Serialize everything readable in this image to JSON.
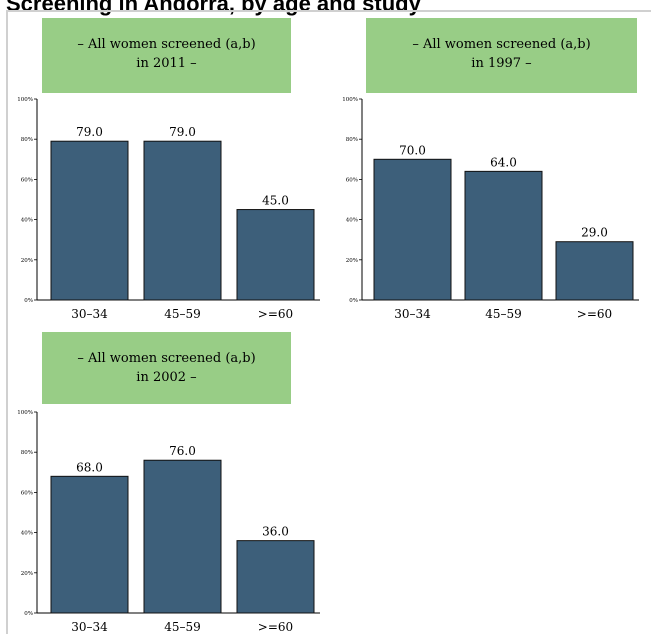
{
  "page": {
    "title": "Screening in Andorra, by age and study"
  },
  "style": {
    "bar_color": "#3d5f7a",
    "bar_stroke": "#111111",
    "header_color": "#98cd86"
  },
  "chart_data": [
    {
      "type": "bar",
      "title": "– All women screened (a,b)\nin 2011 –",
      "categories": [
        "30–34",
        "45–59",
        ">=60"
      ],
      "values": [
        79.0,
        79.0,
        45.0
      ],
      "value_labels": [
        "79.0",
        "79.0",
        "45.0"
      ],
      "ylim": [
        0,
        100
      ],
      "yticks": [
        "0%",
        "20%",
        "40%",
        "60%",
        "80%",
        "100%"
      ],
      "xlabel": "",
      "ylabel": "",
      "grid": false,
      "legend": "none"
    },
    {
      "type": "bar",
      "title": "– All women screened (a,b)\nin 1997 –",
      "categories": [
        "30–34",
        "45–59",
        ">=60"
      ],
      "values": [
        70.0,
        64.0,
        29.0
      ],
      "value_labels": [
        "70.0",
        "64.0",
        "29.0"
      ],
      "ylim": [
        0,
        100
      ],
      "yticks": [
        "0%",
        "20%",
        "40%",
        "60%",
        "80%",
        "100%"
      ],
      "xlabel": "",
      "ylabel": "",
      "grid": false,
      "legend": "none"
    },
    {
      "type": "bar",
      "title": "– All women screened (a,b)\nin 2002 –",
      "categories": [
        "30–34",
        "45–59",
        ">=60"
      ],
      "values": [
        68.0,
        76.0,
        36.0
      ],
      "value_labels": [
        "68.0",
        "76.0",
        "36.0"
      ],
      "ylim": [
        0,
        100
      ],
      "yticks": [
        "0%",
        "20%",
        "40%",
        "60%",
        "80%",
        "100%"
      ],
      "xlabel": "",
      "ylabel": "",
      "grid": false,
      "legend": "none"
    }
  ]
}
